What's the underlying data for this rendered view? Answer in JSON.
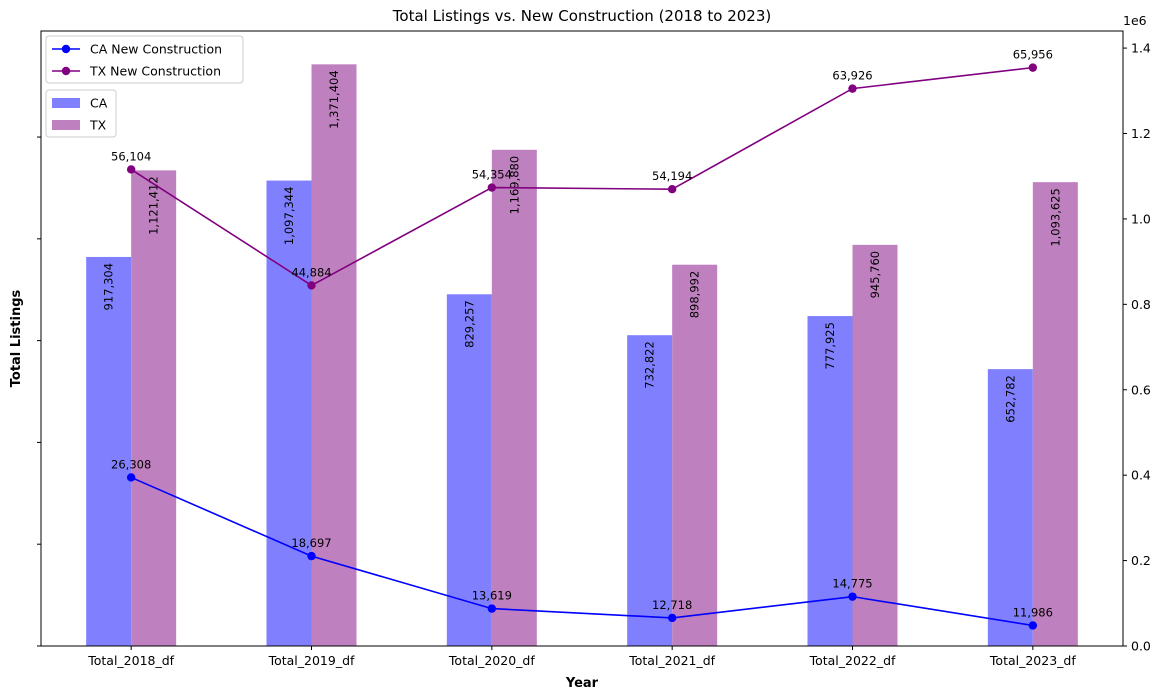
{
  "chart_data": {
    "type": "bar",
    "title": "Total Listings vs. New Construction (2018 to 2023)",
    "xlabel": "Year",
    "ylabel": "Total Listings",
    "categories": [
      "Total_2018_df",
      "Total_2019_df",
      "Total_2020_df",
      "Total_2021_df",
      "Total_2022_df",
      "Total_2023_df"
    ],
    "bar_series": [
      {
        "name": "CA",
        "color": "#8080ff",
        "values": [
          917304,
          1097344,
          829257,
          732822,
          777925,
          652782
        ],
        "labels": [
          "917,304",
          "1,097,344",
          "829,257",
          "732,822",
          "777,925",
          "652,782"
        ]
      },
      {
        "name": "TX",
        "color": "#bf80bf",
        "values": [
          1121412,
          1371404,
          1169880,
          898992,
          945760,
          1093625
        ],
        "labels": [
          "1,121,412",
          "1,371,404",
          "1,169,880",
          "898,992",
          "945,760",
          "1,093,625"
        ]
      }
    ],
    "line_series": [
      {
        "name": "CA New Construction",
        "color": "#0000ff",
        "label_color": "#2a00d4",
        "values": [
          26308,
          18697,
          13619,
          12718,
          14775,
          11986
        ],
        "labels": [
          "26,308",
          "18,697",
          "13,619",
          "12,718",
          "14,775",
          "11,986"
        ]
      },
      {
        "name": "TX New Construction",
        "color": "#800080",
        "label_color": "#800080",
        "values": [
          56104,
          44884,
          54354,
          54194,
          63926,
          65956
        ],
        "labels": [
          "56,104",
          "44,884",
          "54,354",
          "54,194",
          "63,926",
          "65,956"
        ]
      }
    ],
    "left_axis": {
      "ylim": [
        0,
        1450000
      ],
      "ticks": [
        0,
        240000,
        480000,
        720000,
        960000,
        1200000
      ],
      "tick_labels_visible": false
    },
    "right_axis": {
      "ylim": [
        0,
        1.44
      ],
      "ticks": [
        0.0,
        0.2,
        0.4,
        0.6,
        0.8,
        1.0,
        1.2,
        1.4
      ],
      "tick_labels": [
        "0.0",
        "0.2",
        "0.4",
        "0.6",
        "0.8",
        "1.0",
        "1.2",
        "1.4"
      ],
      "offset_text": "1e6"
    },
    "line_axis": {
      "ylim": [
        10000,
        69500
      ]
    },
    "grid": false,
    "legend": {
      "lines_position": "top-left",
      "bars_position": "upper-left"
    }
  }
}
